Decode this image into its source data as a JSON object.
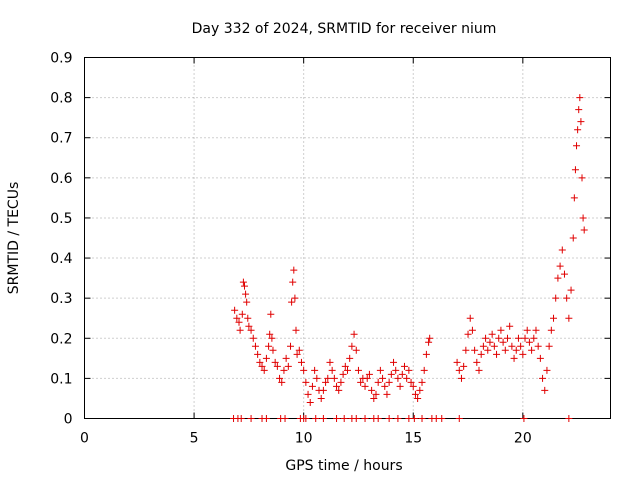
{
  "chart_data": {
    "type": "scatter",
    "title": "Day 332 of 2024, SRMTID for receiver nium",
    "xlabel": "GPS time / hours",
    "ylabel": "SRMTID / TECUs",
    "xlim": [
      0,
      24
    ],
    "ylim": [
      0,
      0.9
    ],
    "xticks": [
      0,
      5,
      10,
      15,
      20
    ],
    "xtick_labels": [
      "0",
      "5",
      "10",
      "15",
      "20"
    ],
    "yticks": [
      0,
      0.1,
      0.2,
      0.3,
      0.4,
      0.5,
      0.6,
      0.7,
      0.8,
      0.9
    ],
    "ytick_labels": [
      "0",
      "0.1",
      "0.2",
      "0.3",
      "0.4",
      "0.5",
      "0.6",
      "0.7",
      "0.8",
      "0.9"
    ],
    "grid": true,
    "marker": "+",
    "color": "#e00000",
    "series": [
      {
        "name": "SRMTID",
        "points": [
          [
            6.85,
            0.27
          ],
          [
            6.95,
            0.25
          ],
          [
            7.05,
            0.24
          ],
          [
            7.1,
            0.22
          ],
          [
            7.2,
            0.26
          ],
          [
            7.25,
            0.34
          ],
          [
            7.3,
            0.33
          ],
          [
            7.35,
            0.31
          ],
          [
            7.4,
            0.29
          ],
          [
            7.45,
            0.25
          ],
          [
            7.5,
            0.23
          ],
          [
            7.6,
            0.22
          ],
          [
            7.7,
            0.2
          ],
          [
            7.8,
            0.18
          ],
          [
            7.9,
            0.16
          ],
          [
            8.0,
            0.14
          ],
          [
            8.1,
            0.13
          ],
          [
            8.2,
            0.12
          ],
          [
            8.3,
            0.15
          ],
          [
            8.4,
            0.18
          ],
          [
            8.45,
            0.21
          ],
          [
            8.5,
            0.26
          ],
          [
            8.55,
            0.2
          ],
          [
            8.6,
            0.17
          ],
          [
            8.7,
            0.14
          ],
          [
            8.8,
            0.13
          ],
          [
            8.9,
            0.1
          ],
          [
            9.0,
            0.09
          ],
          [
            9.1,
            0.12
          ],
          [
            9.2,
            0.15
          ],
          [
            9.3,
            0.13
          ],
          [
            9.4,
            0.18
          ],
          [
            9.45,
            0.29
          ],
          [
            9.5,
            0.34
          ],
          [
            9.55,
            0.37
          ],
          [
            9.6,
            0.3
          ],
          [
            9.65,
            0.22
          ],
          [
            9.7,
            0.16
          ],
          [
            9.8,
            0.17
          ],
          [
            9.9,
            0.14
          ],
          [
            10.0,
            0.12
          ],
          [
            10.1,
            0.09
          ],
          [
            10.2,
            0.06
          ],
          [
            10.3,
            0.04
          ],
          [
            10.4,
            0.08
          ],
          [
            10.5,
            0.12
          ],
          [
            10.6,
            0.1
          ],
          [
            10.7,
            0.07
          ],
          [
            10.8,
            0.05
          ],
          [
            10.9,
            0.07
          ],
          [
            11.0,
            0.09
          ],
          [
            11.1,
            0.1
          ],
          [
            11.2,
            0.14
          ],
          [
            11.3,
            0.12
          ],
          [
            11.4,
            0.1
          ],
          [
            11.5,
            0.08
          ],
          [
            11.6,
            0.07
          ],
          [
            11.7,
            0.09
          ],
          [
            11.8,
            0.11
          ],
          [
            11.9,
            0.13
          ],
          [
            12.0,
            0.12
          ],
          [
            12.1,
            0.15
          ],
          [
            12.2,
            0.18
          ],
          [
            12.3,
            0.21
          ],
          [
            12.4,
            0.17
          ],
          [
            12.5,
            0.12
          ],
          [
            12.6,
            0.09
          ],
          [
            12.7,
            0.1
          ],
          [
            12.8,
            0.08
          ],
          [
            12.9,
            0.1
          ],
          [
            13.0,
            0.11
          ],
          [
            13.1,
            0.07
          ],
          [
            13.2,
            0.05
          ],
          [
            13.3,
            0.06
          ],
          [
            13.4,
            0.09
          ],
          [
            13.5,
            0.12
          ],
          [
            13.6,
            0.1
          ],
          [
            13.7,
            0.08
          ],
          [
            13.8,
            0.06
          ],
          [
            13.9,
            0.09
          ],
          [
            14.0,
            0.11
          ],
          [
            14.1,
            0.14
          ],
          [
            14.2,
            0.12
          ],
          [
            14.3,
            0.1
          ],
          [
            14.4,
            0.08
          ],
          [
            14.5,
            0.11
          ],
          [
            14.6,
            0.13
          ],
          [
            14.7,
            0.1
          ],
          [
            14.8,
            0.12
          ],
          [
            14.9,
            0.09
          ],
          [
            15.0,
            0.08
          ],
          [
            15.1,
            0.06
          ],
          [
            15.2,
            0.05
          ],
          [
            15.3,
            0.07
          ],
          [
            15.4,
            0.09
          ],
          [
            15.5,
            0.12
          ],
          [
            15.6,
            0.16
          ],
          [
            15.7,
            0.19
          ],
          [
            15.75,
            0.2
          ],
          [
            17.0,
            0.14
          ],
          [
            17.1,
            0.12
          ],
          [
            17.2,
            0.1
          ],
          [
            17.3,
            0.13
          ],
          [
            17.4,
            0.17
          ],
          [
            17.5,
            0.21
          ],
          [
            17.6,
            0.25
          ],
          [
            17.7,
            0.22
          ],
          [
            17.8,
            0.17
          ],
          [
            17.9,
            0.14
          ],
          [
            18.0,
            0.12
          ],
          [
            18.1,
            0.16
          ],
          [
            18.2,
            0.18
          ],
          [
            18.3,
            0.2
          ],
          [
            18.4,
            0.17
          ],
          [
            18.5,
            0.19
          ],
          [
            18.6,
            0.21
          ],
          [
            18.7,
            0.18
          ],
          [
            18.8,
            0.16
          ],
          [
            18.9,
            0.2
          ],
          [
            19.0,
            0.22
          ],
          [
            19.1,
            0.19
          ],
          [
            19.2,
            0.17
          ],
          [
            19.3,
            0.2
          ],
          [
            19.4,
            0.23
          ],
          [
            19.5,
            0.18
          ],
          [
            19.6,
            0.15
          ],
          [
            19.7,
            0.17
          ],
          [
            19.8,
            0.2
          ],
          [
            19.9,
            0.18
          ],
          [
            20.0,
            0.16
          ],
          [
            20.1,
            0.2
          ],
          [
            20.2,
            0.22
          ],
          [
            20.3,
            0.19
          ],
          [
            20.4,
            0.17
          ],
          [
            20.5,
            0.2
          ],
          [
            20.6,
            0.22
          ],
          [
            20.7,
            0.18
          ],
          [
            20.8,
            0.15
          ],
          [
            20.9,
            0.1
          ],
          [
            21.0,
            0.07
          ],
          [
            21.1,
            0.12
          ],
          [
            21.2,
            0.18
          ],
          [
            21.3,
            0.22
          ],
          [
            21.4,
            0.25
          ],
          [
            21.5,
            0.3
          ],
          [
            21.6,
            0.35
          ],
          [
            21.7,
            0.38
          ],
          [
            21.8,
            0.42
          ],
          [
            21.9,
            0.36
          ],
          [
            22.0,
            0.3
          ],
          [
            22.1,
            0.25
          ],
          [
            22.2,
            0.32
          ],
          [
            22.3,
            0.45
          ],
          [
            22.35,
            0.55
          ],
          [
            22.4,
            0.62
          ],
          [
            22.45,
            0.68
          ],
          [
            22.5,
            0.72
          ],
          [
            22.55,
            0.77
          ],
          [
            22.6,
            0.8
          ],
          [
            22.65,
            0.74
          ],
          [
            22.7,
            0.6
          ],
          [
            22.75,
            0.5
          ],
          [
            22.8,
            0.47
          ],
          [
            6.8,
            0.0
          ],
          [
            7.0,
            0.0
          ],
          [
            7.15,
            0.0
          ],
          [
            7.6,
            0.0
          ],
          [
            8.1,
            0.0
          ],
          [
            8.3,
            0.0
          ],
          [
            8.95,
            0.0
          ],
          [
            9.15,
            0.0
          ],
          [
            9.85,
            0.0
          ],
          [
            10.0,
            0.0
          ],
          [
            10.1,
            0.0
          ],
          [
            10.55,
            0.0
          ],
          [
            10.9,
            0.0
          ],
          [
            11.5,
            0.0
          ],
          [
            11.85,
            0.0
          ],
          [
            12.2,
            0.0
          ],
          [
            12.4,
            0.0
          ],
          [
            12.8,
            0.0
          ],
          [
            13.2,
            0.0
          ],
          [
            13.4,
            0.0
          ],
          [
            13.9,
            0.0
          ],
          [
            14.3,
            0.0
          ],
          [
            14.8,
            0.0
          ],
          [
            15.05,
            0.0
          ],
          [
            15.4,
            0.0
          ],
          [
            15.85,
            0.0
          ],
          [
            16.05,
            0.0
          ],
          [
            16.3,
            0.0
          ],
          [
            17.1,
            0.0
          ],
          [
            20.05,
            0.0
          ],
          [
            22.1,
            0.0
          ]
        ]
      }
    ]
  }
}
